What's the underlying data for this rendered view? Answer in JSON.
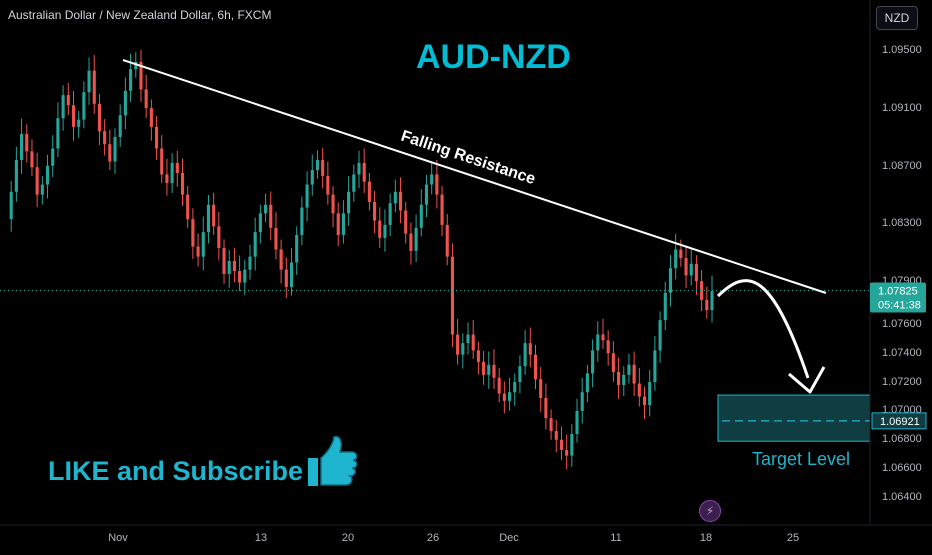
{
  "header": {
    "symbol_title": "Australian Dollar / New Zealand Dollar, 6h, FXCM",
    "currency": "NZD"
  },
  "annotations": {
    "heading": "AUD-NZD",
    "trendline_label": "Falling Resistance",
    "promo": "LIKE and Subscribe",
    "target_label": "Target Level",
    "thumbs_up_icon": "thumbs-up-icon",
    "flash_icon": "lightning-icon"
  },
  "colors": {
    "background": "#000000",
    "up": "#26a69a",
    "down": "#ef5350",
    "accent": "#00bcd4",
    "trendline": "#ffffff",
    "target_box": "#0f3d42"
  },
  "chart_data": {
    "type": "candlestick",
    "yaxis": {
      "ticks": [
        "1.09500",
        "1.09100",
        "1.08700",
        "1.08300",
        "1.07900",
        "1.07600",
        "1.07400",
        "1.07200",
        "1.07000",
        "1.06800",
        "1.06600",
        "1.06400"
      ],
      "range": [
        1.063,
        1.097
      ]
    },
    "xaxis": {
      "ticks": [
        "Nov",
        "13",
        "20",
        "26",
        "Dec",
        "11",
        "18",
        "25"
      ]
    },
    "current_price": {
      "price": "1.07825",
      "countdown": "05:41:38"
    },
    "target_price": "1.06921",
    "target_zone": [
      1.0678,
      1.071
    ],
    "trendline": {
      "label": "Falling Resistance",
      "from": [
        1.0942
      ],
      "to": [
        1.0781
      ]
    },
    "price_path": [
      1.0832,
      1.0851,
      1.0873,
      1.0891,
      1.0879,
      1.0868,
      1.0849,
      1.0856,
      1.0869,
      1.0881,
      1.0902,
      1.0918,
      1.0911,
      1.0896,
      1.0901,
      1.092,
      1.0935,
      1.0912,
      1.0893,
      1.0884,
      1.0872,
      1.0889,
      1.0904,
      1.0921,
      1.0936,
      1.0941,
      1.0922,
      1.0909,
      1.0896,
      1.0881,
      1.0863,
      1.0857,
      1.0871,
      1.0864,
      1.0849,
      1.0832,
      1.0813,
      1.0806,
      1.0823,
      1.0842,
      1.0827,
      1.0812,
      1.0794,
      1.0803,
      1.0796,
      1.0788,
      1.0797,
      1.0806,
      1.0823,
      1.0836,
      1.0842,
      1.0826,
      1.0811,
      1.0797,
      1.0785,
      1.0802,
      1.0821,
      1.084,
      1.0856,
      1.0866,
      1.0873,
      1.0862,
      1.0849,
      1.0836,
      1.0821,
      1.0836,
      1.0851,
      1.0863,
      1.0871,
      1.0858,
      1.0844,
      1.0831,
      1.0819,
      1.0828,
      1.0843,
      1.0851,
      1.0838,
      1.0822,
      1.081,
      1.0826,
      1.0842,
      1.0856,
      1.0863,
      1.0849,
      1.0828,
      1.0806,
      1.0752,
      1.0738,
      1.0746,
      1.0752,
      1.0741,
      1.0733,
      1.0724,
      1.0731,
      1.0722,
      1.0711,
      1.0706,
      1.0712,
      1.0719,
      1.073,
      1.0746,
      1.0738,
      1.0721,
      1.0708,
      1.0694,
      1.0685,
      1.0679,
      1.0672,
      1.0668,
      1.0683,
      1.0699,
      1.0712,
      1.0725,
      1.0741,
      1.0752,
      1.0748,
      1.0739,
      1.0726,
      1.0717,
      1.0724,
      1.0731,
      1.0718,
      1.0709,
      1.0703,
      1.0719,
      1.0741,
      1.0762,
      1.0781,
      1.0798,
      1.0811,
      1.0805,
      1.0793,
      1.0801,
      1.0789,
      1.0776,
      1.0769,
      1.0782
    ]
  }
}
